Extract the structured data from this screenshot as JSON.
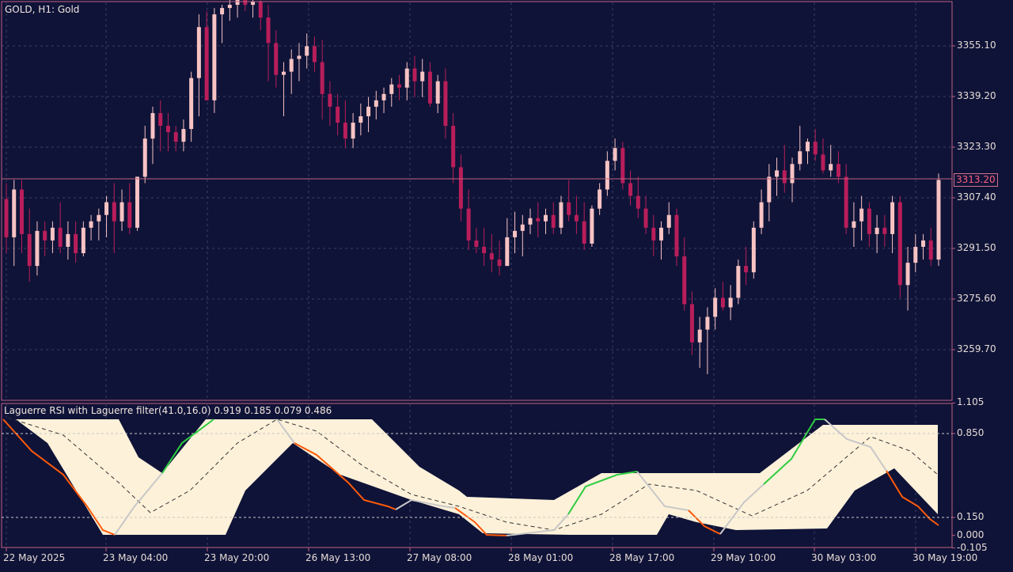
{
  "symbol_label": "GOLD, H1:  Gold",
  "indicator_label": "Laguerre RSI with Laguerre filter(41.0,16.0) 0.919 0.185 0.079 0.486",
  "current_price": "3313.20",
  "colors": {
    "background": "#0f1338",
    "grid": "#3a3f62",
    "border": "#c06080",
    "bull_candle": "#f7c3c3",
    "bear_candle": "#b81e5a",
    "band_fill": "#fdf1d9",
    "rsi_up": "#2ecc40",
    "rsi_down": "#ff5a0a",
    "rsi_neutral": "#c8c8c8",
    "signal_line": "#333333",
    "level_line": "#c8c8c8"
  },
  "price_axis": [
    "3355.10",
    "3339.20",
    "3323.30",
    "3307.40",
    "3291.50",
    "3275.60",
    "3259.70"
  ],
  "indicator_axis": [
    "1.105",
    "0.850",
    "0.150",
    "0.000",
    "-0.105"
  ],
  "time_axis": [
    "22 May 2025",
    "23 May 04:00",
    "23 May 20:00",
    "26 May 13:00",
    "27 May 08:00",
    "28 May 01:00",
    "28 May 17:00",
    "29 May 10:00",
    "30 May 03:00",
    "30 May 19:00"
  ],
  "chart_data": {
    "type": "candlestick",
    "timeframe": "H1",
    "candles_ohlc_approx": [
      [
        3307,
        3312,
        3290,
        3295
      ],
      [
        3295,
        3313,
        3286,
        3310
      ],
      [
        3310,
        3313,
        3290,
        3296
      ],
      [
        3296,
        3304,
        3281,
        3286
      ],
      [
        3286,
        3300,
        3283,
        3297
      ],
      [
        3297,
        3300,
        3289,
        3294
      ],
      [
        3294,
        3300,
        3290,
        3298
      ],
      [
        3298,
        3306,
        3290,
        3292
      ],
      [
        3292,
        3300,
        3288,
        3296
      ],
      [
        3296,
        3300,
        3287,
        3290
      ],
      [
        3290,
        3300,
        3289,
        3298
      ],
      [
        3298,
        3302,
        3294,
        3300
      ],
      [
        3300,
        3304,
        3294,
        3302
      ],
      [
        3302,
        3308,
        3295,
        3306
      ],
      [
        3306,
        3312,
        3290,
        3300
      ],
      [
        3300,
        3310,
        3297,
        3306
      ],
      [
        3306,
        3312,
        3296,
        3298
      ],
      [
        3298,
        3314,
        3297,
        3314
      ],
      [
        3314,
        3330,
        3312,
        3326
      ],
      [
        3326,
        3336,
        3318,
        3334
      ],
      [
        3334,
        3338,
        3322,
        3330
      ],
      [
        3330,
        3334,
        3322,
        3328
      ],
      [
        3328,
        3330,
        3322,
        3325
      ],
      [
        3325,
        3332,
        3322,
        3329
      ],
      [
        3329,
        3347,
        3325,
        3345
      ],
      [
        3345,
        3365,
        3333,
        3361
      ],
      [
        3361,
        3366,
        3338,
        3338
      ],
      [
        3338,
        3367,
        3334,
        3365
      ],
      [
        3365,
        3368,
        3356,
        3367
      ],
      [
        3367,
        3370,
        3363,
        3368
      ],
      [
        3368,
        3373,
        3364,
        3370
      ],
      [
        3370,
        3374,
        3366,
        3368
      ],
      [
        3368,
        3372,
        3364,
        3369
      ],
      [
        3369,
        3371,
        3360,
        3364
      ],
      [
        3364,
        3368,
        3344,
        3356
      ],
      [
        3356,
        3360,
        3342,
        3346
      ],
      [
        3346,
        3350,
        3333,
        3347
      ],
      [
        3347,
        3354,
        3340,
        3351
      ],
      [
        3351,
        3356,
        3344,
        3352
      ],
      [
        3352,
        3359,
        3348,
        3355
      ],
      [
        3355,
        3358,
        3347,
        3350
      ],
      [
        3350,
        3357,
        3332,
        3340
      ],
      [
        3340,
        3344,
        3330,
        3336
      ],
      [
        3336,
        3340,
        3327,
        3331
      ],
      [
        3331,
        3338,
        3323,
        3326
      ],
      [
        3326,
        3334,
        3323,
        3331
      ],
      [
        3331,
        3337,
        3327,
        3333
      ],
      [
        3333,
        3339,
        3328,
        3336
      ],
      [
        3336,
        3341,
        3332,
        3338
      ],
      [
        3338,
        3342,
        3334,
        3340
      ],
      [
        3340,
        3345,
        3336,
        3343
      ],
      [
        3343,
        3346,
        3338,
        3342
      ],
      [
        3342,
        3350,
        3338,
        3348
      ],
      [
        3348,
        3352,
        3339,
        3344
      ],
      [
        3344,
        3351,
        3339,
        3347
      ],
      [
        3347,
        3350,
        3336,
        3337
      ],
      [
        3337,
        3346,
        3334,
        3344
      ],
      [
        3344,
        3348,
        3326,
        3330
      ],
      [
        3330,
        3334,
        3312,
        3317
      ],
      [
        3317,
        3321,
        3300,
        3304
      ],
      [
        3304,
        3310,
        3291,
        3294
      ],
      [
        3294,
        3298,
        3290,
        3292
      ],
      [
        3292,
        3298,
        3286,
        3290
      ],
      [
        3290,
        3296,
        3284,
        3288
      ],
      [
        3288,
        3294,
        3283,
        3286
      ],
      [
        3286,
        3301,
        3286,
        3295
      ],
      [
        3295,
        3303,
        3290,
        3297
      ],
      [
        3297,
        3302,
        3289,
        3299
      ],
      [
        3299,
        3304,
        3296,
        3301
      ],
      [
        3301,
        3306,
        3295,
        3300
      ],
      [
        3300,
        3304,
        3296,
        3302
      ],
      [
        3302,
        3306,
        3296,
        3298
      ],
      [
        3298,
        3308,
        3296,
        3306
      ],
      [
        3306,
        3313,
        3300,
        3302
      ],
      [
        3302,
        3308,
        3296,
        3300
      ],
      [
        3300,
        3306,
        3291,
        3293
      ],
      [
        3293,
        3305,
        3292,
        3304
      ],
      [
        3304,
        3312,
        3302,
        3310
      ],
      [
        3310,
        3322,
        3308,
        3319
      ],
      [
        3319,
        3326,
        3316,
        3323
      ],
      [
        3323,
        3325,
        3310,
        3312
      ],
      [
        3312,
        3316,
        3305,
        3308
      ],
      [
        3308,
        3314,
        3301,
        3304
      ],
      [
        3304,
        3308,
        3296,
        3298
      ],
      [
        3298,
        3302,
        3289,
        3294
      ],
      [
        3294,
        3300,
        3288,
        3298
      ],
      [
        3298,
        3306,
        3296,
        3302
      ],
      [
        3302,
        3304,
        3286,
        3289
      ],
      [
        3289,
        3295,
        3272,
        3274
      ],
      [
        3274,
        3278,
        3258,
        3262
      ],
      [
        3262,
        3270,
        3254,
        3266
      ],
      [
        3266,
        3273,
        3252,
        3270
      ],
      [
        3270,
        3279,
        3266,
        3276
      ],
      [
        3276,
        3281,
        3272,
        3273
      ],
      [
        3273,
        3280,
        3269,
        3276
      ],
      [
        3276,
        3288,
        3274,
        3286
      ],
      [
        3286,
        3292,
        3280,
        3284
      ],
      [
        3284,
        3300,
        3282,
        3298
      ],
      [
        3298,
        3310,
        3296,
        3306
      ],
      [
        3306,
        3318,
        3300,
        3314
      ],
      [
        3314,
        3320,
        3308,
        3316
      ],
      [
        3316,
        3324,
        3309,
        3312
      ],
      [
        3312,
        3320,
        3306,
        3318
      ],
      [
        3318,
        3330,
        3316,
        3322
      ],
      [
        3322,
        3326,
        3318,
        3325
      ],
      [
        3325,
        3329,
        3319,
        3321
      ],
      [
        3321,
        3326,
        3315,
        3316
      ],
      [
        3316,
        3324,
        3314,
        3318
      ],
      [
        3318,
        3322,
        3312,
        3314
      ],
      [
        3314,
        3318,
        3296,
        3298
      ],
      [
        3298,
        3306,
        3292,
        3300
      ],
      [
        3300,
        3308,
        3294,
        3304
      ],
      [
        3304,
        3306,
        3292,
        3296
      ],
      [
        3296,
        3302,
        3290,
        3298
      ],
      [
        3298,
        3302,
        3292,
        3296
      ],
      [
        3296,
        3308,
        3290,
        3306
      ],
      [
        3306,
        3308,
        3276,
        3280
      ],
      [
        3280,
        3292,
        3272,
        3287
      ],
      [
        3287,
        3296,
        3284,
        3292
      ],
      [
        3292,
        3296,
        3288,
        3294
      ],
      [
        3294,
        3298,
        3286,
        3288
      ],
      [
        3288,
        3315,
        3286,
        3313
      ]
    ],
    "indicator": {
      "name": "Laguerre RSI with Laguerre filter",
      "params": [
        41.0,
        16.0
      ],
      "values": [
        0.919,
        0.185,
        0.079,
        0.486
      ],
      "levels": [
        0.85,
        0.15
      ],
      "ylim": [
        -0.105,
        1.105
      ]
    }
  }
}
